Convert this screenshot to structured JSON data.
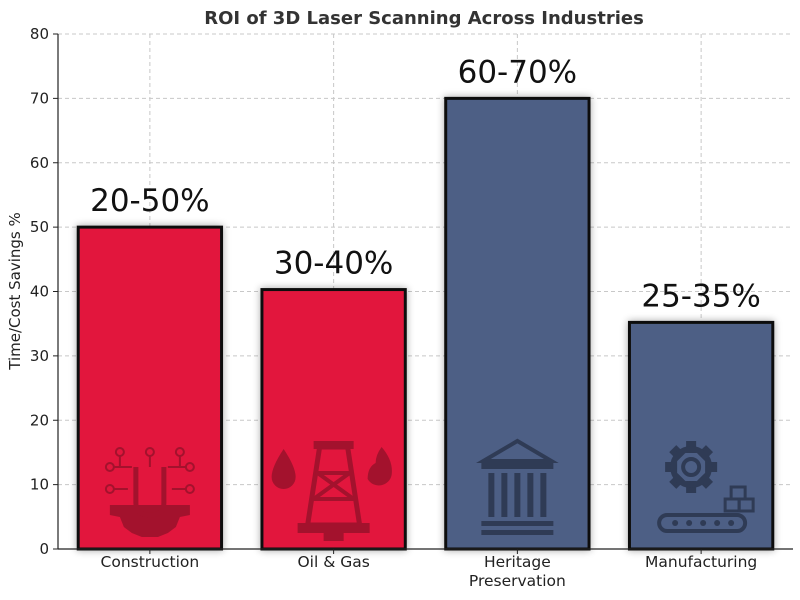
{
  "chart_data": {
    "type": "bar",
    "title": "ROI of 3D Laser Scanning Across Industries",
    "xlabel": "",
    "ylabel": "Time/Cost Savings %",
    "ylim": [
      0,
      80
    ],
    "yticks": [
      0,
      10,
      20,
      30,
      40,
      50,
      60,
      70,
      80
    ],
    "grid": true,
    "categories": [
      "Construction",
      "Oil & Gas",
      "Heritage Preservation",
      "Manufacturing"
    ],
    "category_lines": [
      [
        "Construction"
      ],
      [
        "Oil & Gas"
      ],
      [
        "Heritage",
        "Preservation"
      ],
      [
        "Manufacturing"
      ]
    ],
    "values": [
      50,
      40.3,
      70,
      35.2
    ],
    "data_labels": [
      "20-50%",
      "30-40%",
      "60-70%",
      "25-35%"
    ],
    "bar_colors": [
      "#e2193e",
      "#e2193e",
      "#4d5f85",
      "#4d5f85"
    ],
    "bar_icons": [
      "crane-gear-icon",
      "oil-rig-icon",
      "museum-columns-icon",
      "gear-conveyor-icon"
    ],
    "icon_colors": [
      "#a3122d",
      "#a3122d",
      "#2f3b55",
      "#2f3b55"
    ]
  }
}
